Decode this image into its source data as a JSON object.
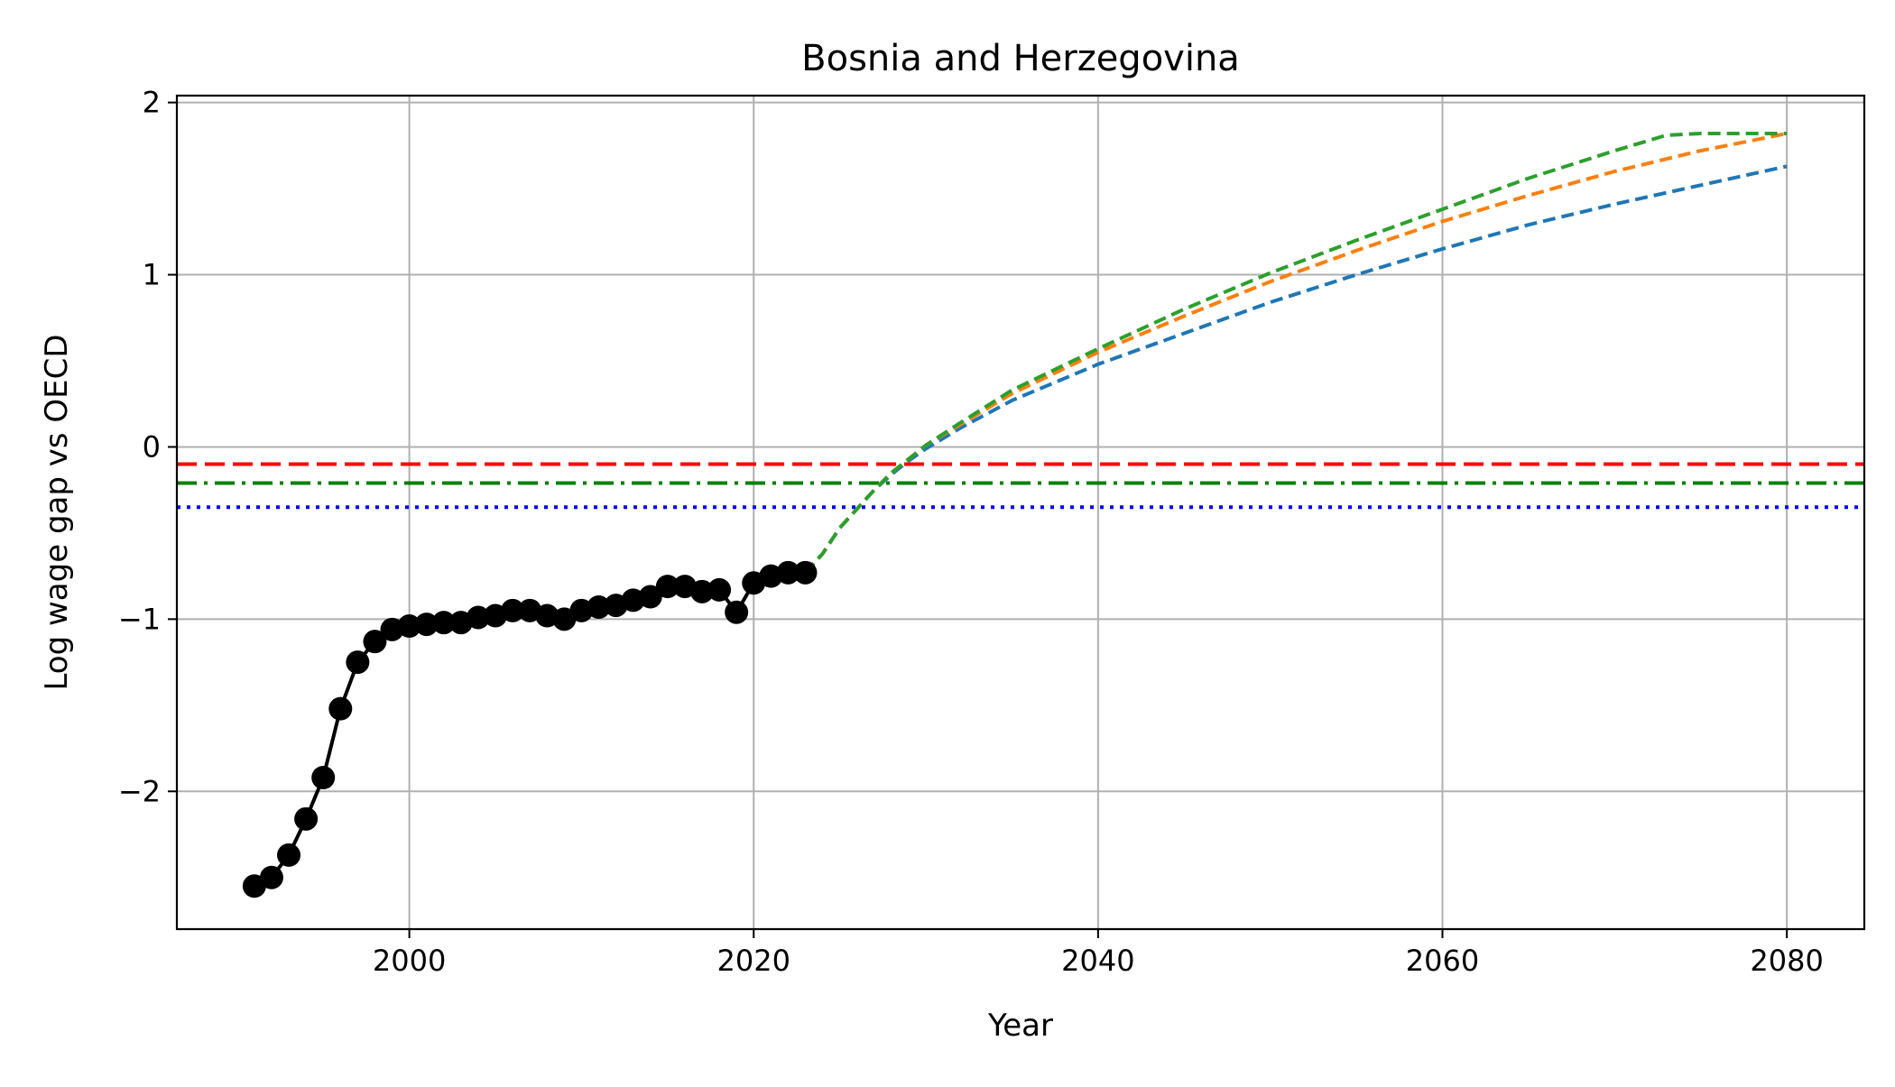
{
  "chart_data": {
    "type": "line",
    "title": "Bosnia and Herzegovina",
    "xlabel": "Year",
    "ylabel": "Log wage gap vs OECD",
    "xlim": [
      1986.5,
      2084.5
    ],
    "ylim": [
      -2.8,
      2.04
    ],
    "xticks": [
      2000,
      2020,
      2040,
      2060,
      2080
    ],
    "yticks": [
      -2,
      -1,
      0,
      1,
      2
    ],
    "grid": true,
    "colors": {
      "observed": "#000000",
      "blue": "#1f77b4",
      "orange": "#ff7f0e",
      "green": "#2ca02c",
      "ref_red": "#ff0000",
      "ref_green": "#008000",
      "ref_blue": "#0000ff"
    },
    "observed": {
      "x": [
        1991,
        1992,
        1993,
        1994,
        1995,
        1996,
        1997,
        1998,
        1999,
        2000,
        2001,
        2002,
        2003,
        2004,
        2005,
        2006,
        2007,
        2008,
        2009,
        2010,
        2011,
        2012,
        2013,
        2014,
        2015,
        2016,
        2017,
        2018,
        2019,
        2020,
        2021,
        2022,
        2023
      ],
      "y": [
        -2.55,
        -2.5,
        -2.37,
        -2.16,
        -1.92,
        -1.52,
        -1.25,
        -1.13,
        -1.06,
        -1.04,
        -1.03,
        -1.02,
        -1.02,
        -0.99,
        -0.98,
        -0.95,
        -0.95,
        -0.98,
        -1.0,
        -0.95,
        -0.93,
        -0.92,
        -0.89,
        -0.87,
        -0.81,
        -0.81,
        -0.84,
        -0.83,
        -0.96,
        -0.79,
        -0.75,
        -0.73,
        -0.73
      ]
    },
    "projections": [
      {
        "key": "blue",
        "x": [
          2023,
          2024,
          2025,
          2026,
          2027,
          2028,
          2029,
          2030,
          2032,
          2035,
          2040,
          2045,
          2050,
          2055,
          2060,
          2065,
          2070,
          2075,
          2080
        ],
        "y": [
          -0.73,
          -0.62,
          -0.47,
          -0.36,
          -0.25,
          -0.16,
          -0.08,
          -0.01,
          0.11,
          0.27,
          0.48,
          0.66,
          0.84,
          1.0,
          1.15,
          1.29,
          1.41,
          1.52,
          1.63
        ]
      },
      {
        "key": "orange",
        "x": [
          2023,
          2024,
          2025,
          2026,
          2027,
          2028,
          2029,
          2030,
          2032,
          2035,
          2040,
          2045,
          2050,
          2055,
          2060,
          2065,
          2070,
          2075,
          2080
        ],
        "y": [
          -0.73,
          -0.62,
          -0.47,
          -0.36,
          -0.25,
          -0.15,
          -0.07,
          0.01,
          0.13,
          0.31,
          0.55,
          0.76,
          0.96,
          1.14,
          1.31,
          1.46,
          1.6,
          1.72,
          1.82
        ]
      },
      {
        "key": "green",
        "x": [
          2023,
          2024,
          2025,
          2026,
          2027,
          2028,
          2029,
          2030,
          2032,
          2035,
          2040,
          2045,
          2050,
          2055,
          2060,
          2065,
          2070,
          2073,
          2075,
          2080
        ],
        "y": [
          -0.73,
          -0.62,
          -0.47,
          -0.36,
          -0.25,
          -0.15,
          -0.07,
          0.01,
          0.14,
          0.33,
          0.57,
          0.8,
          1.01,
          1.2,
          1.38,
          1.56,
          1.72,
          1.81,
          1.82,
          1.82
        ]
      }
    ],
    "reference_lines": [
      {
        "key": "ref_red",
        "y": -0.1,
        "style": "dashed"
      },
      {
        "key": "ref_green",
        "y": -0.21,
        "style": "dashdot"
      },
      {
        "key": "ref_blue",
        "y": -0.35,
        "style": "dotted"
      }
    ]
  }
}
